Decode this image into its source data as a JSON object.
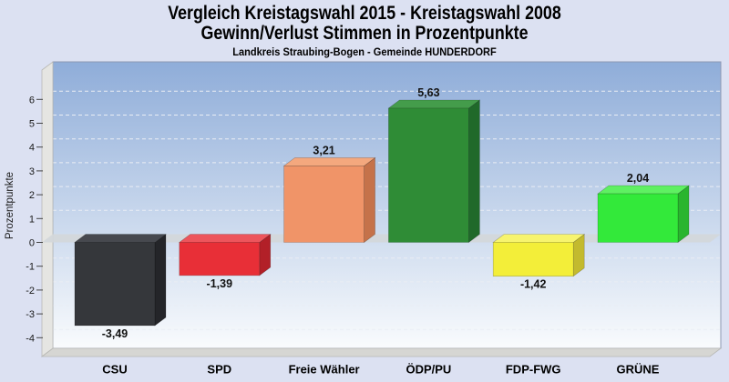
{
  "header": {
    "title_line1": "Vergleich Kreistagswahl 2015 - Kreistagswahl 2008",
    "title_line2": "Gewinn/Verlust Stimmen in Prozentpunkte",
    "subtitle": "Landkreis Straubing-Bogen - Gemeinde HUNDERDORF"
  },
  "chart_data": {
    "type": "bar",
    "style": "3d-column",
    "title": "Vergleich Kreistagswahl 2015 - Kreistagswahl 2008 — Gewinn/Verlust Stimmen in Prozentpunkte",
    "subtitle": "Landkreis Straubing-Bogen - Gemeinde HUNDERDORF",
    "xlabel": "",
    "ylabel": "Prozentpunkte",
    "ylim": [
      -4,
      6
    ],
    "yticks": [
      6,
      5,
      4,
      3,
      2,
      1,
      0,
      -1,
      -2,
      -3,
      -4
    ],
    "grid": true,
    "legend": false,
    "decimal_separator": ",",
    "categories": [
      "CSU",
      "SPD",
      "Freie Wähler",
      "ÖDP/PU",
      "FDP-FWG",
      "GRÜNE"
    ],
    "values": [
      -3.49,
      -1.39,
      3.21,
      5.63,
      -1.42,
      2.04
    ],
    "bars": [
      {
        "label": "CSU",
        "value": -3.49,
        "value_label": "-3,49",
        "front": "#35373b",
        "top": "#47494f",
        "side": "#242529"
      },
      {
        "label": "SPD",
        "value": -1.39,
        "value_label": "-1,39",
        "front": "#e82f37",
        "top": "#ed555c",
        "side": "#b22028"
      },
      {
        "label": "Freie Wähler",
        "value": 3.21,
        "value_label": "3,21",
        "front": "#f09468",
        "top": "#f4a87e",
        "side": "#c5724a"
      },
      {
        "label": "ÖDP/PU",
        "value": 5.63,
        "value_label": "5,63",
        "front": "#2f8c36",
        "top": "#449c4b",
        "side": "#20692a"
      },
      {
        "label": "FDP-FWG",
        "value": -1.42,
        "value_label": "-1,42",
        "front": "#f3ee39",
        "top": "#f7f46e",
        "side": "#c3ba2e"
      },
      {
        "label": "GRÜNE",
        "value": 2.04,
        "value_label": "2,04",
        "front": "#33e93a",
        "top": "#5ff062",
        "side": "#2ab52f"
      }
    ],
    "colors": {
      "page_bg": "#dce1f2",
      "plot_gradient_top": "#8fadd9",
      "plot_gradient_bottom": "#f9fbfd",
      "plot_border": "#8e99b3",
      "wall": "#e5e5e2",
      "wall_edge": "#b8b8b5",
      "floor": "#d6d6d3",
      "zero_band": "#d3d7da",
      "grid_line": "#e9edf4",
      "tick": "#444444",
      "tick_label": "#1a1a1a",
      "value_label": "#111111",
      "category_label": "#000000",
      "title_text": "#000000"
    }
  }
}
